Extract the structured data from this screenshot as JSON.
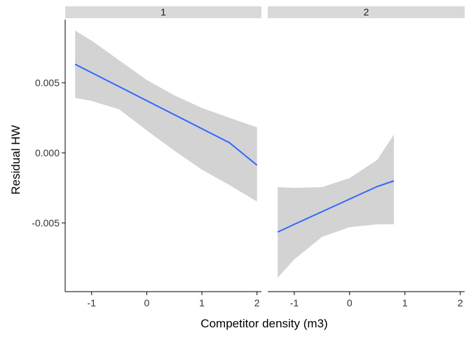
{
  "chart_data": {
    "type": "line",
    "facets": [
      {
        "label": "1",
        "series": [
          {
            "x": [
              -1.3,
              -1.0,
              -0.5,
              0.0,
              0.5,
              1.0,
              1.5,
              2.0
            ],
            "y": [
              0.00632,
              0.00572,
              0.00472,
              0.00372,
              0.00272,
              0.00172,
              0.00072,
              -0.00088
            ],
            "lower": [
              0.00392,
              0.0037,
              0.0031,
              0.0016,
              0.00015,
              -0.0012,
              -0.0023,
              -0.00348
            ],
            "upper": [
              0.00872,
              0.008,
              0.0066,
              0.0052,
              0.0041,
              0.0032,
              0.0025,
              0.00182
            ]
          }
        ]
      },
      {
        "label": "2",
        "series": [
          {
            "x": [
              -1.3,
              -1.0,
              -0.5,
              0.0,
              0.5,
              0.8
            ],
            "y": [
              -0.00565,
              -0.0051,
              -0.0042,
              -0.0033,
              -0.0024,
              -0.002
            ],
            "lower": [
              -0.0089,
              -0.0076,
              -0.006,
              -0.0053,
              -0.0051,
              -0.0051
            ],
            "upper": [
              -0.00245,
              -0.0025,
              -0.00245,
              -0.0018,
              -0.0005,
              0.0013
            ]
          }
        ]
      }
    ],
    "xlabel": "Competitor density (m3)",
    "ylabel": "Residual HW",
    "xlim": [
      -1.48,
      2.08
    ],
    "ylim": [
      -0.0099,
      0.0095
    ],
    "xticks": [
      -1,
      0,
      1,
      2
    ],
    "xtick_labels": [
      "-1",
      "0",
      "1",
      "2"
    ],
    "yticks": [
      0.005,
      0.0,
      -0.005
    ],
    "ytick_labels": [
      "0.005",
      "0.000",
      "-0.005"
    ],
    "colors": {
      "line": "#3366FF",
      "ribbon": "#D3D3D3",
      "strip": "#D9D9D9",
      "axis": "#000000"
    },
    "grid": false,
    "legend": "none"
  }
}
